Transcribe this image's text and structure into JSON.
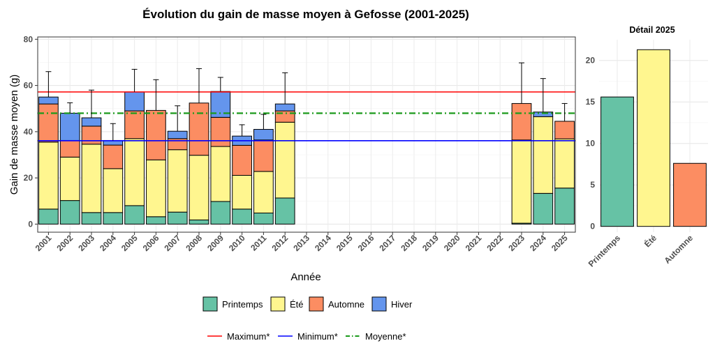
{
  "chart_data": [
    {
      "type": "bar",
      "stacked": true,
      "title": "Évolution du gain de masse moyen à Gefosse (2001-2025)",
      "xlabel": "Année",
      "ylabel": "Gain de masse moyen (g)",
      "ylim": [
        -3.5,
        81
      ],
      "yticks": [
        "0",
        "20",
        "40",
        "60",
        "80"
      ],
      "yticks_values": [
        0,
        20,
        40,
        60,
        80
      ],
      "grid": true,
      "categories": [
        "2001",
        "2002",
        "2003",
        "2004",
        "2005",
        "2006",
        "2007",
        "2008",
        "2009",
        "2010",
        "2011",
        "2012",
        "2013",
        "2014",
        "2015",
        "2016",
        "2017",
        "2018",
        "2019",
        "2020",
        "2021",
        "2022",
        "2023",
        "2024",
        "2025"
      ],
      "series": [
        {
          "name": "Printemps",
          "color": "#66c2a5",
          "values": [
            6.5,
            10.2,
            5,
            5,
            8,
            3.2,
            5.2,
            1.8,
            9.8,
            6.5,
            4.8,
            11.3,
            null,
            null,
            null,
            null,
            null,
            null,
            null,
            null,
            null,
            null,
            0.4,
            13.3,
            15.6
          ]
        },
        {
          "name": "Été",
          "color": "#fff68f",
          "values": [
            29,
            18.8,
            29.6,
            19,
            29,
            24.6,
            27,
            28,
            23.8,
            14.6,
            18,
            32.8,
            null,
            null,
            null,
            null,
            null,
            null,
            null,
            null,
            null,
            null,
            36,
            33.2,
            21.3
          ]
        },
        {
          "name": "Automne",
          "color": "#fc8d62",
          "values": [
            16.5,
            7.2,
            7.8,
            10.2,
            12,
            21.4,
            4.8,
            22.6,
            12.6,
            13,
            13.6,
            4.9,
            null,
            null,
            null,
            null,
            null,
            null,
            null,
            null,
            null,
            null,
            15.8,
            0,
            7.6
          ]
        },
        {
          "name": "Hiver",
          "color": "#6495ed",
          "values": [
            3,
            11.8,
            3.6,
            2,
            8.2,
            0,
            3.2,
            0,
            11.2,
            4,
            4.6,
            3,
            null,
            null,
            null,
            null,
            null,
            null,
            null,
            null,
            null,
            null,
            0,
            2,
            0
          ]
        }
      ],
      "error_top": [
        66,
        52.5,
        58,
        43.5,
        67,
        62.5,
        51.2,
        67.3,
        63.5,
        43,
        47.5,
        65.5,
        null,
        null,
        null,
        null,
        null,
        null,
        null,
        null,
        null,
        null,
        69.8,
        63,
        52.2
      ],
      "reference_lines": [
        {
          "name": "Maximum*",
          "value": 57.2,
          "color": "#ff0000",
          "style": "solid"
        },
        {
          "name": "Minimum*",
          "value": 36.1,
          "color": "#0000ff",
          "style": "solid"
        },
        {
          "name": "Moyenne*",
          "value": 48,
          "color": "#1a9a1a",
          "style": "dotdash"
        }
      ],
      "legend_position": "bottom"
    },
    {
      "type": "bar",
      "title": "Détail 2025",
      "categories": [
        "Printemps",
        "Été",
        "Automne"
      ],
      "values": [
        15.6,
        21.3,
        7.6
      ],
      "colors": [
        "#66c2a5",
        "#fff68f",
        "#fc8d62"
      ],
      "ylim": [
        -0.7,
        22.5
      ],
      "yticks": [
        "0",
        "5",
        "10",
        "15",
        "20"
      ],
      "yticks_values": [
        0,
        5,
        10,
        15,
        20
      ],
      "grid": true
    }
  ]
}
